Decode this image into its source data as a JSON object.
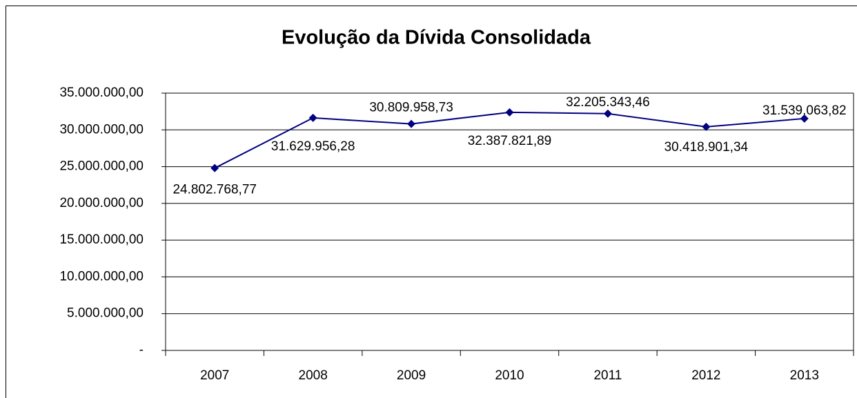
{
  "chart_data": {
    "type": "line",
    "title": "Evolução da Dívida Consolidada",
    "categories": [
      "2007",
      "2008",
      "2009",
      "2010",
      "2011",
      "2012",
      "2013"
    ],
    "series": [
      {
        "name": "Dívida Consolidada",
        "color": "#000080",
        "values": [
          24802768.77,
          31629956.28,
          30809958.73,
          32387821.89,
          32205343.46,
          30418901.34,
          31539063.82
        ],
        "value_labels": [
          "24.802.768,77",
          "31.629.956,28",
          "30.809.958,73",
          "32.387.821,89",
          "32.205.343,46",
          "30.418.901,34",
          "31.539.063,82"
        ]
      }
    ],
    "ylim": [
      0,
      35000000
    ],
    "yticks": [
      {
        "value": 0,
        "label": "-"
      },
      {
        "value": 5000000,
        "label": "5.000.000,00"
      },
      {
        "value": 10000000,
        "label": "10.000.000,00"
      },
      {
        "value": 15000000,
        "label": "15.000.000,00"
      },
      {
        "value": 20000000,
        "label": "20.000.000,00"
      },
      {
        "value": 25000000,
        "label": "25.000.000,00"
      },
      {
        "value": 30000000,
        "label": "30.000.000,00"
      },
      {
        "value": 35000000,
        "label": "35.000.000,00"
      }
    ],
    "grid": true
  }
}
